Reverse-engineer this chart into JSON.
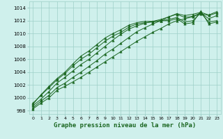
{
  "xlabel": "Graphe pression niveau de la mer (hPa)",
  "bg_color": "#cff0ec",
  "grid_color": "#9ecfc8",
  "line_color": "#1a6620",
  "marker_color": "#1a6620",
  "xlim": [
    -0.5,
    23.5
  ],
  "ylim": [
    997.5,
    1015.0
  ],
  "xticks": [
    0,
    1,
    2,
    3,
    4,
    5,
    6,
    7,
    8,
    9,
    10,
    11,
    12,
    13,
    14,
    15,
    16,
    17,
    18,
    19,
    20,
    21,
    22,
    23
  ],
  "yticks": [
    998,
    1000,
    1002,
    1004,
    1006,
    1008,
    1010,
    1012,
    1014
  ],
  "series": [
    [
      998.3,
      999.2,
      1000.0,
      1001.2,
      1001.8,
      1002.5,
      1003.2,
      1004.0,
      1004.8,
      1005.6,
      1006.4,
      1007.2,
      1008.0,
      1008.8,
      1009.5,
      1010.2,
      1010.8,
      1011.5,
      1012.0,
      1012.3,
      1012.6,
      1013.1,
      1012.8,
      1013.2
    ],
    [
      998.5,
      999.5,
      1000.4,
      1001.6,
      1002.3,
      1003.2,
      1004.0,
      1004.9,
      1005.8,
      1006.8,
      1007.6,
      1008.5,
      1009.4,
      1010.3,
      1010.9,
      1011.5,
      1012.0,
      1012.6,
      1013.1,
      1012.8,
      1013.0,
      1013.3,
      1012.9,
      1013.4
    ],
    [
      998.8,
      999.8,
      1001.0,
      1002.3,
      1003.2,
      1004.2,
      1005.2,
      1006.0,
      1007.0,
      1008.0,
      1009.0,
      1009.9,
      1010.7,
      1011.2,
      1011.6,
      1011.9,
      1012.2,
      1012.6,
      1013.0,
      1012.5,
      1012.7,
      1013.2,
      1012.3,
      1012.8
    ],
    [
      999.2,
      1000.4,
      1001.6,
      1002.8,
      1003.8,
      1005.0,
      1006.0,
      1006.8,
      1007.8,
      1008.8,
      1009.6,
      1010.2,
      1011.0,
      1011.5,
      1011.7,
      1011.8,
      1012.0,
      1012.2,
      1012.5,
      1011.8,
      1012.0,
      1013.2,
      1011.8,
      1012.0
    ],
    [
      999.0,
      1000.5,
      1001.8,
      1003.0,
      1004.0,
      1005.3,
      1006.5,
      1007.3,
      1008.3,
      1009.3,
      1010.0,
      1010.6,
      1011.3,
      1011.7,
      1011.9,
      1011.9,
      1012.0,
      1012.0,
      1012.3,
      1011.5,
      1011.7,
      1013.5,
      1011.5,
      1011.8
    ]
  ]
}
